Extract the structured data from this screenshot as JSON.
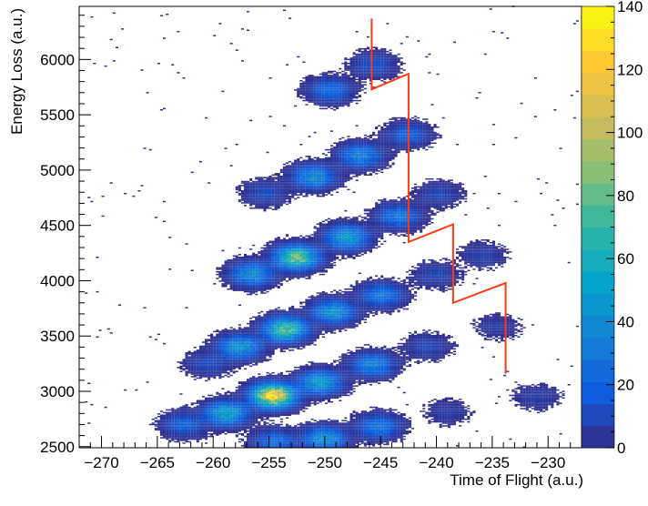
{
  "chart_data": {
    "type": "heatmap",
    "title": "",
    "xlabel": "Time of Flight (a.u.)",
    "ylabel": "Energy Loss (a.u.)",
    "xlim": [
      -272,
      -227
    ],
    "ylim": [
      2490,
      6480
    ],
    "x_ticks": [
      -270,
      -265,
      -260,
      -255,
      -250,
      -245,
      -240,
      -235,
      -230
    ],
    "y_ticks": [
      2500,
      3000,
      3500,
      4000,
      4500,
      5000,
      5500,
      6000
    ],
    "colorbar": {
      "range": [
        0,
        140
      ],
      "ticks": [
        0,
        20,
        40,
        60,
        80,
        100,
        120,
        140
      ],
      "palette": [
        "#352a87",
        "#0f5cdd",
        "#1481d6",
        "#06a4ca",
        "#2eb7a4",
        "#87bf77",
        "#d1bb59",
        "#fec832",
        "#f9fb0e"
      ]
    },
    "clusters": [
      {
        "x": -254.6,
        "y": 2960,
        "peak": 130
      },
      {
        "x": -250.4,
        "y": 3080,
        "peak": 50
      },
      {
        "x": -245.7,
        "y": 3240,
        "peak": 35
      },
      {
        "x": -258.8,
        "y": 2800,
        "peak": 55
      },
      {
        "x": -262.6,
        "y": 2700,
        "peak": 20
      },
      {
        "x": -250.0,
        "y": 2570,
        "peak": 45
      },
      {
        "x": -245.2,
        "y": 2680,
        "peak": 30
      },
      {
        "x": -254.5,
        "y": 2545,
        "peak": 25
      },
      {
        "x": -260.4,
        "y": 3250,
        "peak": 12
      },
      {
        "x": -257.6,
        "y": 3400,
        "peak": 45
      },
      {
        "x": -253.5,
        "y": 3560,
        "peak": 80
      },
      {
        "x": -249.2,
        "y": 3720,
        "peak": 45
      },
      {
        "x": -244.9,
        "y": 3870,
        "peak": 30
      },
      {
        "x": -240.8,
        "y": 3400,
        "peak": 10
      },
      {
        "x": -256.5,
        "y": 4060,
        "peak": 40
      },
      {
        "x": -252.5,
        "y": 4210,
        "peak": 85
      },
      {
        "x": -248.0,
        "y": 4390,
        "peak": 50
      },
      {
        "x": -243.4,
        "y": 4580,
        "peak": 30
      },
      {
        "x": -240.0,
        "y": 4050,
        "peak": 10
      },
      {
        "x": -235.8,
        "y": 4230,
        "peak": 8
      },
      {
        "x": -251.0,
        "y": 4940,
        "peak": 40
      },
      {
        "x": -246.8,
        "y": 5130,
        "peak": 35
      },
      {
        "x": -242.6,
        "y": 5320,
        "peak": 20
      },
      {
        "x": -255.3,
        "y": 4790,
        "peak": 12
      },
      {
        "x": -239.8,
        "y": 4780,
        "peak": 10
      },
      {
        "x": -249.5,
        "y": 5720,
        "peak": 25
      },
      {
        "x": -245.6,
        "y": 5950,
        "peak": 15
      },
      {
        "x": -234.5,
        "y": 3580,
        "peak": 6
      },
      {
        "x": -231.0,
        "y": 2950,
        "peak": 7
      },
      {
        "x": -239.0,
        "y": 2810,
        "peak": 6
      }
    ],
    "cut_polyline": {
      "color": "#ff3b16",
      "points": [
        [
          -245.8,
          6370
        ],
        [
          -245.8,
          5730
        ],
        [
          -242.5,
          5870
        ],
        [
          -242.5,
          4350
        ],
        [
          -238.5,
          4510
        ],
        [
          -238.5,
          3800
        ],
        [
          -233.8,
          3980
        ],
        [
          -233.8,
          3160
        ]
      ]
    }
  }
}
